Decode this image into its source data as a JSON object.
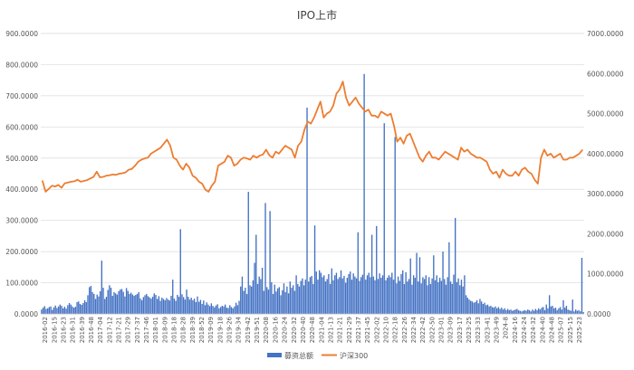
{
  "chart_data": {
    "type": "bar+line",
    "title": "IPO上市",
    "xlabel": "",
    "ylabel_left": "",
    "ylabel_right": "",
    "ylim_left": [
      0,
      900
    ],
    "ylim_right": [
      0,
      7000
    ],
    "yticks_left": [
      "0.0000",
      "100.0000",
      "200.0000",
      "300.0000",
      "400.0000",
      "500.0000",
      "600.0000",
      "700.0000",
      "800.0000",
      "900.0000"
    ],
    "yticks_right": [
      "0.0000",
      "1000.0000",
      "2000.0000",
      "3000.0000",
      "4000.0000",
      "5000.0000",
      "6000.0000",
      "7000.0000"
    ],
    "x_tick_labels": [
      "2016-02",
      "2016-15",
      "2016-23",
      "2016-31",
      "2016-39",
      "2016-48",
      "2017-04",
      "2017-12",
      "2017-21",
      "2017-29",
      "2017-37",
      "2017-46",
      "2018-01",
      "2018-09",
      "2018-18",
      "2018-28",
      "2018-39",
      "2018-52",
      "2019-09",
      "2019-18",
      "2019-26",
      "2019-34",
      "2019-42",
      "2019-51",
      "2020-08",
      "2020-16",
      "2020-24",
      "2020-32",
      "2020-40",
      "2020-48",
      "2021-04",
      "2021-13",
      "2021-21",
      "2021-29",
      "2021-37",
      "2021-45",
      "2022-02",
      "2022-10",
      "2022-18",
      "2022-26",
      "2022-34",
      "2022-42",
      "2022-50",
      "2023-01",
      "2023-09",
      "2023-17",
      "2023-25",
      "2023-33",
      "2023-41",
      "2023-49",
      "2024-8",
      "2024-16",
      "2024-24",
      "2024-32",
      "2024-40",
      "2024-48",
      "2025-07",
      "2025-15",
      "2025-23"
    ],
    "grid": true,
    "legend_position": "bottom",
    "series": [
      {
        "name": "募资总额",
        "type": "bar",
        "axis": "left",
        "color": "#4472C4",
        "values": [
          14,
          20,
          25,
          16,
          18,
          22,
          24,
          13,
          21,
          27,
          19,
          24,
          30,
          26,
          18,
          23,
          17,
          28,
          35,
          30,
          24,
          20,
          23,
          38,
          40,
          32,
          29,
          35,
          44,
          38,
          60,
          86,
          90,
          70,
          64,
          48,
          62,
          56,
          73,
          171,
          84,
          48,
          55,
          77,
          92,
          84,
          58,
          70,
          66,
          62,
          73,
          78,
          80,
          71,
          56,
          83,
          74,
          64,
          68,
          62,
          58,
          61,
          64,
          70,
          50,
          44,
          54,
          60,
          64,
          57,
          53,
          49,
          55,
          66,
          61,
          48,
          57,
          42,
          52,
          48,
          44,
          51,
          46,
          43,
          58,
          110,
          49,
          42,
          61,
          55,
          272,
          63,
          54,
          46,
          78,
          55,
          46,
          52,
          44,
          49,
          38,
          56,
          39,
          45,
          32,
          43,
          28,
          37,
          30,
          25,
          34,
          26,
          21,
          27,
          31,
          18,
          22,
          26,
          24,
          30,
          20,
          19,
          28,
          22,
          18,
          24,
          36,
          28,
          42,
          88,
          120,
          74,
          84,
          64,
          392,
          92,
          88,
          108,
          164,
          254,
          96,
          120,
          112,
          148,
          74,
          356,
          86,
          78,
          330,
          102,
          64,
          94,
          72,
          82,
          86,
          60,
          76,
          98,
          70,
          88,
          66,
          104,
          84,
          92,
          74,
          124,
          96,
          88,
          106,
          114,
          92,
          110,
          662,
          104,
          118,
          122,
          96,
          284,
          136,
          110,
          140,
          132,
          118,
          124,
          104,
          112,
          128,
          96,
          146,
          108,
          124,
          132,
          112,
          118,
          140,
          114,
          122,
          100,
          116,
          128,
          136,
          110,
          130,
          120,
          114,
          262,
          106,
          118,
          126,
          770,
          110,
          124,
          132,
          118,
          254,
          120,
          108,
          282,
          112,
          130,
          116,
          124,
          612,
          108,
          116,
          124,
          118,
          132,
          110,
          568,
          98,
          120,
          106,
          128,
          140,
          96,
          134,
          104,
          112,
          178,
          94,
          124,
          116,
          196,
          104,
          182,
          98,
          118,
          112,
          124,
          92,
          118,
          96,
          114,
          188,
          108,
          124,
          102,
          116,
          106,
          200,
          112,
          94,
          118,
          230,
          104,
          96,
          126,
          308,
          102,
          114,
          92,
          110,
          88,
          124,
          60,
          52,
          46,
          42,
          40,
          36,
          38,
          44,
          34,
          48,
          40,
          32,
          36,
          28,
          30,
          24,
          26,
          22,
          20,
          24,
          18,
          22,
          16,
          20,
          14,
          18,
          12,
          16,
          12,
          14,
          10,
          12,
          14,
          16,
          12,
          10,
          8,
          10,
          12,
          10,
          14,
          12,
          8,
          14,
          10,
          16,
          12,
          18,
          14,
          20,
          22,
          12,
          30,
          18,
          60,
          24,
          26,
          18,
          20,
          12,
          18,
          22,
          14,
          44,
          20,
          26,
          14,
          12,
          10,
          46,
          8,
          14,
          10,
          12,
          8,
          180,
          6
        ]
      },
      {
        "name": "沪深300",
        "type": "line",
        "axis": "right",
        "color": "#ED7D31",
        "values": [
          3330,
          3050,
          3120,
          3200,
          3180,
          3220,
          3150,
          3260,
          3280,
          3300,
          3310,
          3350,
          3300,
          3320,
          3340,
          3380,
          3420,
          3550,
          3410,
          3420,
          3450,
          3460,
          3480,
          3470,
          3500,
          3510,
          3530,
          3600,
          3620,
          3700,
          3800,
          3850,
          3880,
          3900,
          4000,
          4050,
          4100,
          4150,
          4250,
          4350,
          4200,
          3900,
          3850,
          3700,
          3600,
          3750,
          3650,
          3450,
          3400,
          3300,
          3250,
          3100,
          3050,
          3200,
          3300,
          3700,
          3750,
          3800,
          3950,
          3900,
          3700,
          3750,
          3850,
          3900,
          3880,
          3850,
          3950,
          3900,
          3950,
          3980,
          4100,
          3960,
          3900,
          4050,
          4000,
          4100,
          4200,
          4150,
          4100,
          3900,
          4200,
          4300,
          4600,
          4800,
          4750,
          4900,
          5100,
          5300,
          4900,
          5000,
          5050,
          5200,
          5500,
          5600,
          5800,
          5400,
          5200,
          5300,
          5400,
          5250,
          5150,
          5050,
          5100,
          4950,
          4950,
          4900,
          5050,
          5000,
          4950,
          5000,
          4700,
          4300,
          4400,
          4250,
          4450,
          4500,
          4300,
          4100,
          3900,
          3800,
          3950,
          4050,
          3900,
          3900,
          3850,
          3950,
          4050,
          4000,
          3950,
          3900,
          3850,
          4150,
          4050,
          4100,
          4000,
          3950,
          3900,
          3900,
          3850,
          3800,
          3600,
          3500,
          3550,
          3400,
          3600,
          3500,
          3450,
          3450,
          3550,
          3450,
          3600,
          3650,
          3550,
          3500,
          3350,
          3250,
          3900,
          4100,
          3950,
          4000,
          3900,
          3950,
          4000,
          3850,
          3850,
          3900,
          3900,
          3950,
          4000,
          4100
        ]
      }
    ]
  }
}
